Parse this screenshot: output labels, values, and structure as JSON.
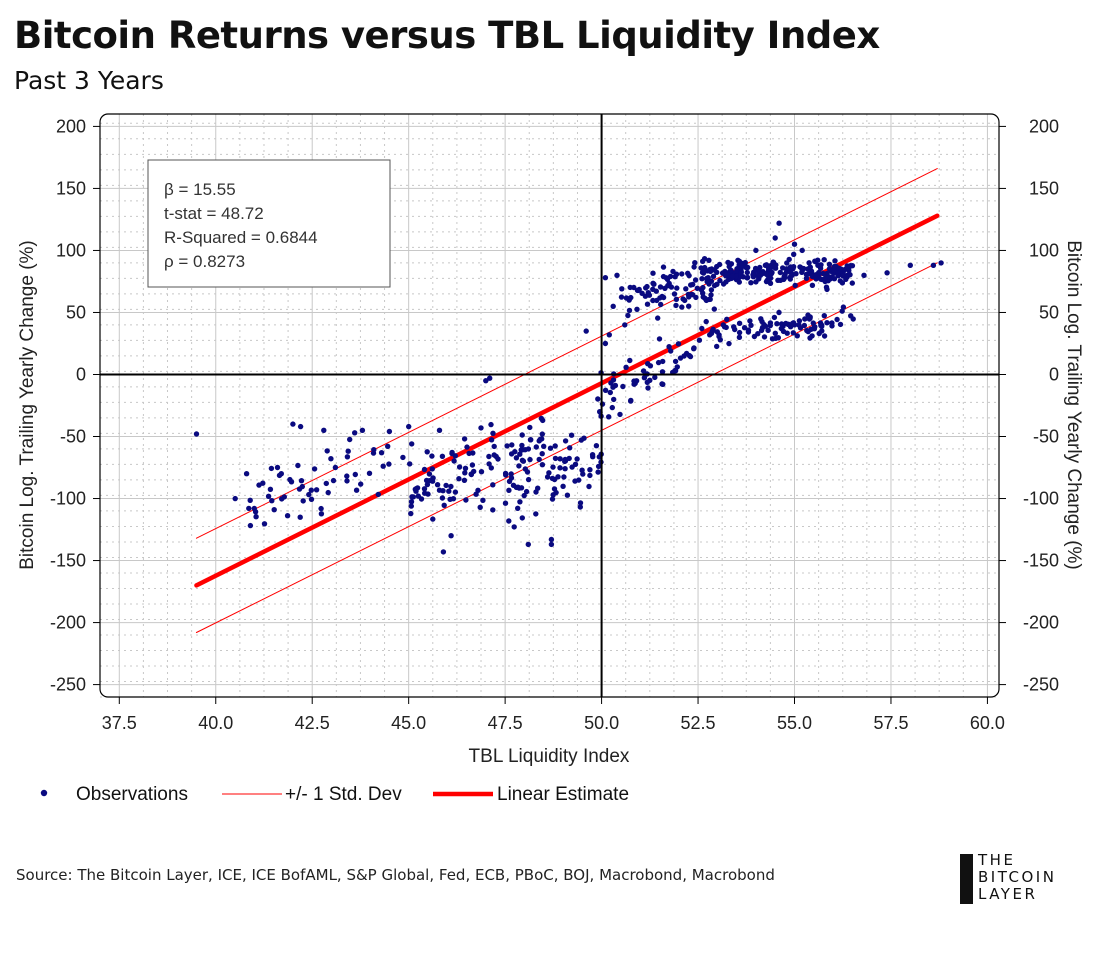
{
  "header": {
    "title": "Bitcoin Returns versus TBL Liquidity Index",
    "subtitle": "Past 3 Years"
  },
  "stats_box": {
    "beta": "β = 15.55",
    "tstat": "t-stat = 48.72",
    "rsquared": "R-Squared = 0.6844",
    "rho": "ρ = 0.8273"
  },
  "legend": {
    "observations": "Observations",
    "stddev": "+/- 1 Std. Dev",
    "linear": "Linear Estimate"
  },
  "footer": {
    "source": "Source: The Bitcoin Layer, ICE, ICE BofAML, S&P Global, Fed, ECB, PBoC, BOJ, Macrobond, Macrobond",
    "logo_line1": "THE",
    "logo_line2": "BITCOIN",
    "logo_line3": "LAYER"
  },
  "colors": {
    "points": "#0a0a80",
    "fit": "#ff0000",
    "axis": "#000000",
    "grid": "#c8c8c8"
  },
  "chart_data": {
    "type": "scatter",
    "title": "Bitcoin Returns versus TBL Liquidity Index",
    "subtitle": "Past 3 Years",
    "xlabel": "TBL Liquidity Index",
    "ylabel": "Bitcoin Log. Trailing Yearly Change (%)",
    "ylabel_right": "Bitcoin Log. Trailing Yearly Change (%)",
    "xlim": [
      37,
      60.3
    ],
    "ylim": [
      -260,
      210
    ],
    "x_ticks": [
      37.5,
      40.0,
      42.5,
      45.0,
      47.5,
      50.0,
      52.5,
      55.0,
      57.5,
      60.0
    ],
    "x_tick_labels": [
      "37.5",
      "40.0",
      "42.5",
      "45.0",
      "47.5",
      "50.0",
      "52.5",
      "55.0",
      "57.5",
      "60.0"
    ],
    "y_ticks": [
      200,
      150,
      100,
      50,
      0,
      -50,
      -100,
      -150,
      -200,
      -250
    ],
    "y_tick_labels": [
      "200",
      "150",
      "100",
      "50",
      "0",
      "-50",
      "-100",
      "-150",
      "-200",
      "-250"
    ],
    "grid": true,
    "reference_lines": {
      "x": 50.0,
      "y": 0
    },
    "series": [
      {
        "name": "Observations",
        "type": "scatter",
        "clusters": [
          {
            "x_range": [
              40.5,
              45.0
            ],
            "y_center_at_x0": -105,
            "x0": 40.5,
            "slope": 8,
            "spread": 22,
            "count": 55
          },
          {
            "x_range": [
              45.0,
              48.5
            ],
            "y_center_at_x0": -95,
            "x0": 45.0,
            "slope": 11,
            "spread": 28,
            "count": 110
          },
          {
            "x_range": [
              47.5,
              50.0
            ],
            "y_center_at_x0": -95,
            "x0": 47.5,
            "slope": 14,
            "spread": 32,
            "count": 70
          },
          {
            "x_range": [
              49.8,
              52.5
            ],
            "y_center_at_x0": -20,
            "x0": 49.8,
            "slope": 14,
            "spread": 18,
            "count": 55
          },
          {
            "x_range": [
              50.5,
              53.0
            ],
            "y_center_at_x0": 60,
            "x0": 50.5,
            "slope": 6,
            "spread": 20,
            "count": 90
          },
          {
            "x_range": [
              52.5,
              56.5
            ],
            "y_center_at_x0": 82,
            "x0": 52.5,
            "slope": 0,
            "spread": 10,
            "count": 210
          },
          {
            "x_range": [
              52.5,
              56.6
            ],
            "y_center_at_x0": 32,
            "x0": 52.5,
            "slope": 3,
            "spread": 10,
            "count": 95
          }
        ],
        "points": [
          [
            39.5,
            -48
          ],
          [
            40.8,
            -80
          ],
          [
            41.0,
            -108
          ],
          [
            41.6,
            -75
          ],
          [
            41.7,
            -80
          ],
          [
            42.0,
            -40
          ],
          [
            42.2,
            -42
          ],
          [
            42.8,
            -45
          ],
          [
            43.1,
            -75
          ],
          [
            43.6,
            -47
          ],
          [
            43.8,
            -45
          ],
          [
            44.5,
            -46
          ],
          [
            45.0,
            -42
          ],
          [
            45.8,
            -45
          ],
          [
            47.0,
            -5
          ],
          [
            47.1,
            -3
          ],
          [
            48.1,
            -137
          ],
          [
            45.9,
            -143
          ],
          [
            46.1,
            -130
          ],
          [
            48.7,
            -133
          ],
          [
            48.7,
            -137
          ],
          [
            49.6,
            35
          ],
          [
            50.1,
            25
          ],
          [
            50.2,
            32
          ],
          [
            50.3,
            55
          ],
          [
            50.1,
            78
          ],
          [
            50.4,
            80
          ],
          [
            58.0,
            88
          ],
          [
            58.6,
            88
          ],
          [
            58.8,
            90
          ],
          [
            57.4,
            82
          ],
          [
            56.8,
            80
          ],
          [
            55.2,
            100
          ],
          [
            54.6,
            122
          ],
          [
            54.5,
            110
          ],
          [
            54.0,
            100
          ],
          [
            55.0,
            105
          ]
        ]
      },
      {
        "name": "Linear Estimate",
        "type": "line",
        "x": [
          39.5,
          58.7
        ],
        "y": [
          -170,
          128
        ]
      },
      {
        "name": "+1 Std. Dev",
        "type": "line",
        "x": [
          39.5,
          58.7
        ],
        "y": [
          -132,
          166
        ]
      },
      {
        "name": "-1 Std. Dev",
        "type": "line",
        "x": [
          39.5,
          58.7
        ],
        "y": [
          -208,
          90
        ]
      }
    ]
  }
}
